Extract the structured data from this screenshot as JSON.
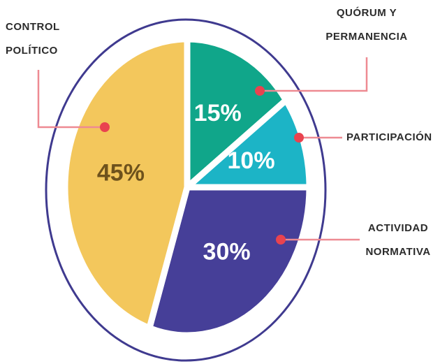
{
  "chart_data": {
    "type": "pie",
    "categories": [
      "QUÓRUM Y PERMANENCIA",
      "PARTICIPACIÓN",
      "ACTIVIDAD NORMATIVA",
      "CONTROL POLÍTICO"
    ],
    "values": [
      15,
      10,
      30,
      45
    ],
    "value_labels": [
      "15%",
      "10%",
      "30%",
      "45%"
    ],
    "colors": [
      "#10a68a",
      "#1cb4c6",
      "#463f98",
      "#f3c75c"
    ]
  }
}
